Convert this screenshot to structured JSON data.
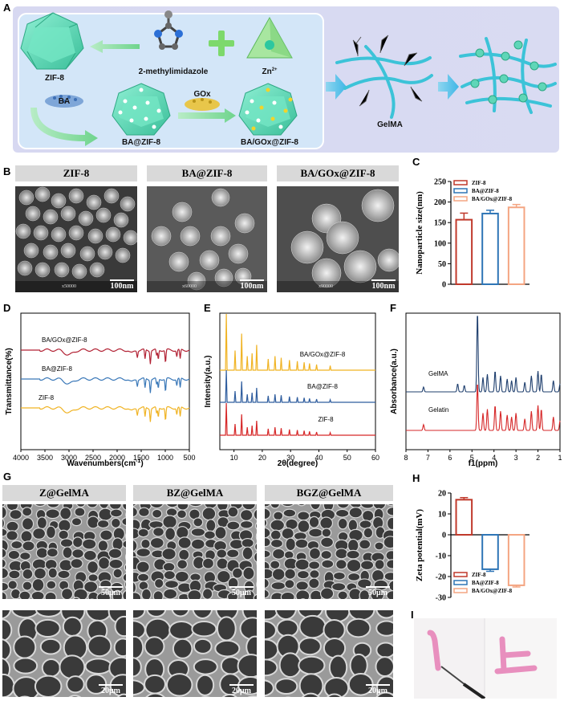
{
  "panels": {
    "A": "A",
    "B": "B",
    "C": "C",
    "D": "D",
    "E": "E",
    "F": "F",
    "G": "G",
    "H": "H",
    "I": "I"
  },
  "schematic": {
    "zif8": "ZIF-8",
    "linker": "2-methylimidazole",
    "zn": "Zn",
    "zn_sup": "2+",
    "ba": "BA",
    "gox": "GOx",
    "ba_zif8": "BA@ZIF-8",
    "ba_gox_zif8": "BA/GOx@ZIF-8",
    "gelma": "GelMA",
    "colors": {
      "bg": "#dcdcf2",
      "inner": "#d3e6f8",
      "crystal": "#5fd6b8",
      "arrow": "#7dd89a"
    }
  },
  "sem_b": {
    "tabs": [
      "ZIF-8",
      "BA@ZIF-8",
      "BA/GOx@ZIF-8"
    ],
    "scales": [
      "100nm",
      "100nm",
      "100nm"
    ],
    "mags": [
      "x50000",
      "x60000",
      "x90000"
    ]
  },
  "sem_g": {
    "tabs": [
      "Z@GelMA",
      "BZ@GelMA",
      "BGZ@GelMA"
    ],
    "scales_top": [
      "50μm",
      "50μm",
      "50μm"
    ],
    "scales_bottom": [
      "20μm",
      "20μm",
      "20μm"
    ]
  },
  "chart_data": [
    {
      "id": "C",
      "type": "bar",
      "categories": [
        "ZIF-8",
        "BA@ZIF-8",
        "BA/GOx@ZIF-8"
      ],
      "values": [
        157,
        172,
        187
      ],
      "errors": [
        16,
        8,
        7
      ],
      "colors": [
        "#c0392b",
        "#2e75b6",
        "#f4a582"
      ],
      "ylabel": "Nanoparticle size(nm)",
      "ylim": [
        0,
        250
      ],
      "yticks": [
        "0",
        "50",
        "100",
        "150",
        "200",
        "250"
      ],
      "legend": [
        "ZIF-8",
        "BA@ZIF-8",
        "BA/GOx@ZIF-8"
      ],
      "legend_position": "top-left"
    },
    {
      "id": "D",
      "type": "line",
      "title": "",
      "xlabel": "Wavenumbers(cm",
      "xlabel_sup": "-1",
      "xlabel_end": ")",
      "ylabel": "Transmittance(%)",
      "xlim": [
        4000,
        500
      ],
      "xticks": [
        "4000",
        "3500",
        "3000",
        "2500",
        "2000",
        "1500",
        "1000",
        "500"
      ],
      "series": [
        {
          "name": "BA/GOx@ZIF-8",
          "color": "#b22234"
        },
        {
          "name": "BA@ZIF-8",
          "color": "#3a78b8"
        },
        {
          "name": "ZIF-8",
          "color": "#f0b323"
        }
      ]
    },
    {
      "id": "E",
      "type": "line",
      "xlabel": "2θ(degree)",
      "ylabel": "Intensity(a.u.)",
      "xlim": [
        5,
        60
      ],
      "xticks": [
        "10",
        "20",
        "30",
        "40",
        "50",
        "60"
      ],
      "series": [
        {
          "name": "BA/GOx@ZIF-8",
          "color": "#f0b323"
        },
        {
          "name": "BA@ZIF-8",
          "color": "#2f5d9e"
        },
        {
          "name": "ZIF-8",
          "color": "#d62728"
        }
      ],
      "peaks": [
        7.3,
        10.4,
        12.7,
        14.7,
        16.4,
        18.0,
        22.1,
        24.5,
        26.7,
        29.6,
        32.4,
        34.8,
        36.7,
        39.2,
        44.0
      ]
    },
    {
      "id": "F",
      "type": "line",
      "xlabel": "f1(ppm)",
      "ylabel": "Absorbance(a.u.)",
      "xlim": [
        8,
        1
      ],
      "xticks": [
        "8",
        "7",
        "6",
        "5",
        "4",
        "3",
        "2",
        "1"
      ],
      "series": [
        {
          "name": "GelMA",
          "color": "#1f3f6e"
        },
        {
          "name": "Gelatin",
          "color": "#d62728"
        }
      ]
    },
    {
      "id": "H",
      "type": "bar",
      "categories": [
        "ZIF-8",
        "BA@ZIF-8",
        "BA/GOx@ZIF-8"
      ],
      "values": [
        16.8,
        -16.5,
        -24.2
      ],
      "errors": [
        1.0,
        1.0,
        0.8
      ],
      "colors": [
        "#c0392b",
        "#2e75b6",
        "#f4a582"
      ],
      "ylabel": "Zeta potential(mV)",
      "ylim": [
        -30,
        20
      ],
      "yticks": [
        "20",
        "10",
        "0",
        "-10",
        "-20",
        "-30"
      ],
      "legend": [
        "ZIF-8",
        "BA@ZIF-8",
        "BA/GOx@ZIF-8"
      ],
      "legend_position": "bottom-left"
    }
  ]
}
